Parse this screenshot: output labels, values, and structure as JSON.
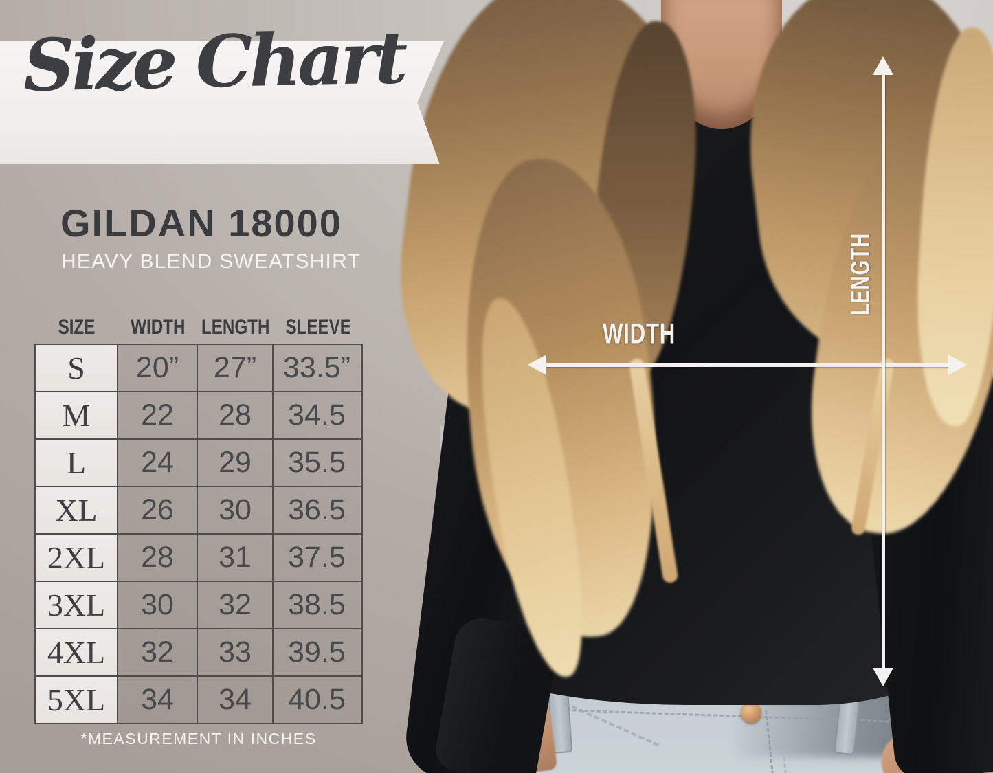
{
  "title_banner": {
    "text": "Size Chart"
  },
  "product": {
    "name": "GILDAN 18000",
    "subtitle": "HEAVY BLEND SWEATSHIRT"
  },
  "size_table": {
    "columns": [
      "SIZE",
      "WIDTH",
      "LENGTH",
      "SLEEVE"
    ],
    "rows": [
      [
        "S",
        "20”",
        "27”",
        "33.5”"
      ],
      [
        "M",
        "22",
        "28",
        "34.5"
      ],
      [
        "L",
        "24",
        "29",
        "35.5"
      ],
      [
        "XL",
        "26",
        "30",
        "36.5"
      ],
      [
        "2XL",
        "28",
        "31",
        "37.5"
      ],
      [
        "3XL",
        "30",
        "32",
        "38.5"
      ],
      [
        "4XL",
        "32",
        "33",
        "39.5"
      ],
      [
        "5XL",
        "34",
        "34",
        "40.5"
      ]
    ],
    "footnote": "*MEASUREMENT IN INCHES"
  },
  "measurement_overlay": {
    "width_label": "WIDTH",
    "length_label": "LENGTH"
  },
  "chart_data": {
    "type": "table",
    "title": "Gildan 18000 Heavy Blend Sweatshirt Size Chart",
    "unit": "inches",
    "columns": [
      "SIZE",
      "WIDTH",
      "LENGTH",
      "SLEEVE"
    ],
    "sizes": [
      "S",
      "M",
      "L",
      "XL",
      "2XL",
      "3XL",
      "4XL",
      "5XL"
    ],
    "width_in": [
      20,
      22,
      24,
      26,
      28,
      30,
      32,
      34
    ],
    "length_in": [
      27,
      28,
      29,
      30,
      31,
      32,
      33,
      34
    ],
    "sleeve_in": [
      33.5,
      34.5,
      35.5,
      36.5,
      37.5,
      38.5,
      39.5,
      40.5
    ],
    "footnote": "*MEASUREMENT IN INCHES"
  },
  "colors": {
    "background_taupe": "#b6afa9",
    "ribbon_offwhite": "#f1efed",
    "charcoal_text": "#3b3d40",
    "size_cell_bg": "#ebe8e4",
    "table_border": "#4e4c4a",
    "white_text": "#f4f3f1",
    "sweatshirt_black": "#141517",
    "jeans_blue_gray": "#c6cdd2"
  }
}
